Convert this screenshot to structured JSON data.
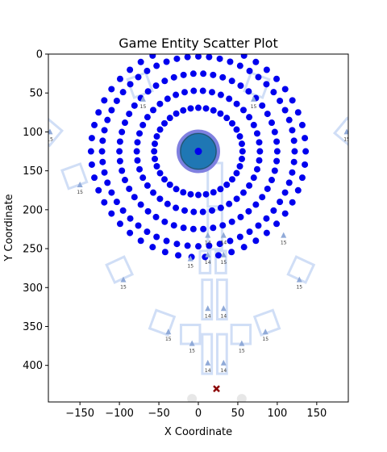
{
  "chart_data": {
    "type": "scatter",
    "title": "Game Entity Scatter Plot",
    "xlabel": "X Coordinate",
    "ylabel": "Y Coordinate",
    "xlim": [
      -190,
      190
    ],
    "ylim": [
      447,
      0
    ],
    "y_inverted": true,
    "grid": false,
    "legend": "none",
    "xticks": [
      -150,
      -100,
      -50,
      0,
      50,
      100,
      150
    ],
    "yticks": [
      0,
      50,
      100,
      150,
      200,
      250,
      300,
      350,
      400
    ],
    "colors": {
      "ring_dots": "#0000ee",
      "center_fill": "#1f77b4",
      "center_outline": "#8080e0",
      "platform": "#c8d8f4",
      "triangle": "#90aad8",
      "cross": "#8b0000",
      "grey_circle": "#dddddd"
    },
    "rings": {
      "center": [
        0,
        125
      ],
      "radii": [
        56,
        78,
        100,
        122,
        136
      ],
      "dot_counts": [
        36,
        42,
        50,
        56,
        50
      ]
    },
    "center_entity": {
      "x": 0,
      "y": 125,
      "label": "player"
    },
    "triangles": [
      {
        "x": -150,
        "y": 168,
        "label": "15"
      },
      {
        "x": -95,
        "y": 290,
        "label": "15"
      },
      {
        "x": -38,
        "y": 357,
        "label": "15"
      },
      {
        "x": -8,
        "y": 372,
        "label": "15"
      },
      {
        "x": 12,
        "y": 233,
        "label": "14"
      },
      {
        "x": 32,
        "y": 233,
        "label": "14"
      },
      {
        "x": 12,
        "y": 258,
        "label": "14"
      },
      {
        "x": 32,
        "y": 258,
        "label": "15"
      },
      {
        "x": 12,
        "y": 327,
        "label": "14"
      },
      {
        "x": 32,
        "y": 327,
        "label": "14"
      },
      {
        "x": 12,
        "y": 397,
        "label": "14"
      },
      {
        "x": 32,
        "y": 397,
        "label": "14"
      },
      {
        "x": 55,
        "y": 372,
        "label": "15"
      },
      {
        "x": 85,
        "y": 357,
        "label": "15"
      },
      {
        "x": 108,
        "y": 233,
        "label": "15"
      },
      {
        "x": 128,
        "y": 290,
        "label": "15"
      },
      {
        "x": -188,
        "y": 100,
        "label": "15"
      },
      {
        "x": 188,
        "y": 100,
        "label": "15"
      },
      {
        "x": -70,
        "y": 58,
        "label": "15"
      },
      {
        "x": 70,
        "y": 58,
        "label": "15"
      },
      {
        "x": -10,
        "y": 263,
        "label": "15"
      }
    ],
    "cross": {
      "x": 23,
      "y": 430
    },
    "grey_circles": [
      {
        "x": -8,
        "y": 443
      },
      {
        "x": 55,
        "y": 443
      }
    ]
  }
}
